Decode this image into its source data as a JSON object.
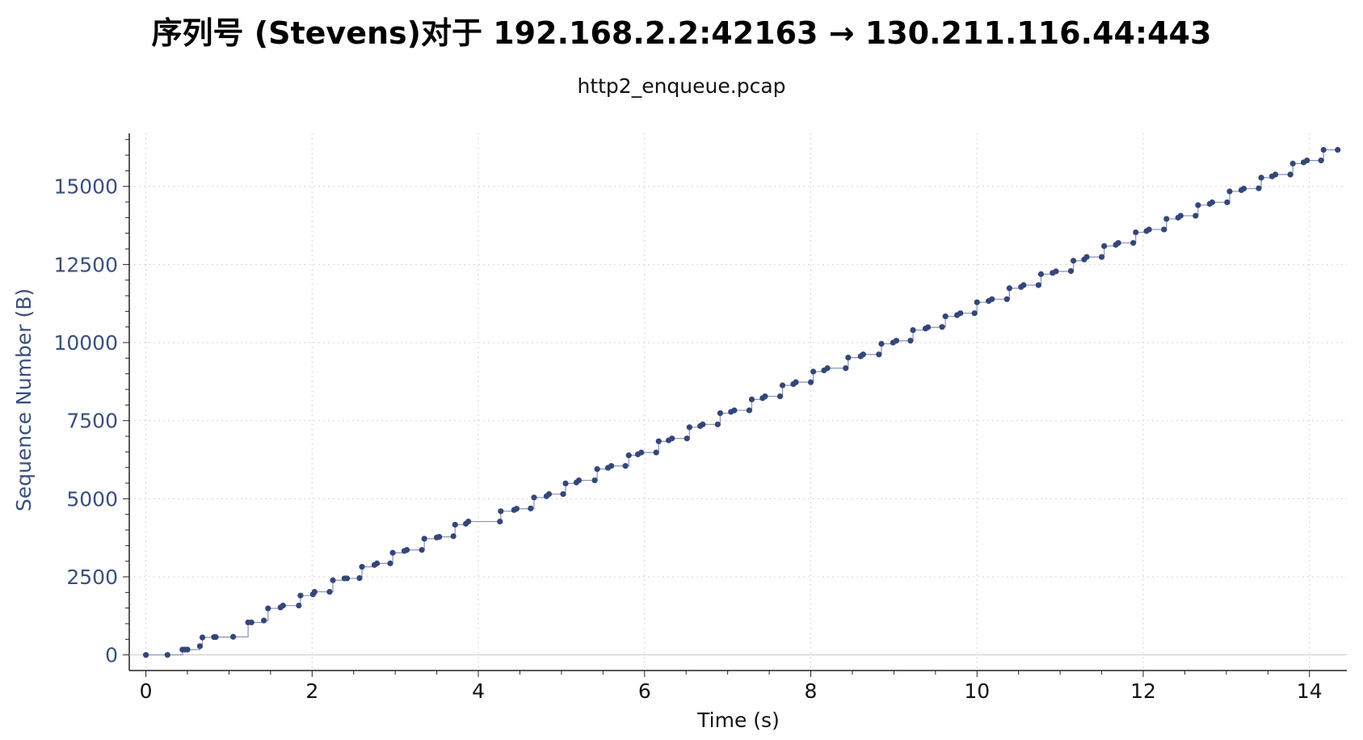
{
  "chart_data": {
    "type": "scatter",
    "title": "序列号 (Stevens)对于 192.168.2.2:42163 → 130.211.116.44:443",
    "subtitle": "http2_enqueue.pcap",
    "xlabel": "Time (s)",
    "ylabel": "Sequence Number (B)",
    "xlim": [
      -0.2,
      14.45
    ],
    "ylim": [
      -500,
      16700
    ],
    "xticks": [
      0,
      2,
      4,
      6,
      8,
      10,
      12,
      14
    ],
    "yticks": [
      0,
      2500,
      5000,
      7500,
      10000,
      12500,
      15000
    ],
    "grid": true,
    "legend": "none",
    "series": [
      {
        "color": "#34467a",
        "points": [
          [
            0.0,
            0
          ],
          [
            0.26,
            0
          ],
          [
            0.44,
            170
          ],
          [
            0.47,
            170
          ],
          [
            0.5,
            170
          ],
          [
            0.65,
            280
          ],
          [
            0.68,
            560
          ],
          [
            0.82,
            570
          ],
          [
            0.84,
            570
          ],
          [
            1.05,
            580
          ],
          [
            1.23,
            1040
          ],
          [
            1.27,
            1040
          ],
          [
            1.42,
            1100
          ],
          [
            1.47,
            1490
          ],
          [
            1.62,
            1520
          ],
          [
            1.65,
            1580
          ],
          [
            1.84,
            1580
          ],
          [
            1.86,
            1900
          ],
          [
            2.01,
            1940
          ],
          [
            2.03,
            2020
          ],
          [
            2.21,
            2020
          ],
          [
            2.25,
            2390
          ],
          [
            2.39,
            2450
          ],
          [
            2.42,
            2450
          ],
          [
            2.57,
            2460
          ],
          [
            2.6,
            2820
          ],
          [
            2.75,
            2880
          ],
          [
            2.78,
            2930
          ],
          [
            2.94,
            2930
          ],
          [
            2.97,
            3270
          ],
          [
            3.11,
            3330
          ],
          [
            3.14,
            3360
          ],
          [
            3.32,
            3360
          ],
          [
            3.35,
            3720
          ],
          [
            3.5,
            3760
          ],
          [
            3.53,
            3780
          ],
          [
            3.7,
            3800
          ],
          [
            3.72,
            4170
          ],
          [
            3.85,
            4200
          ],
          [
            3.88,
            4270
          ],
          [
            4.26,
            4270
          ],
          [
            4.27,
            4600
          ],
          [
            4.43,
            4640
          ],
          [
            4.46,
            4680
          ],
          [
            4.63,
            4690
          ],
          [
            4.67,
            5040
          ],
          [
            4.82,
            5080
          ],
          [
            4.85,
            5150
          ],
          [
            5.02,
            5150
          ],
          [
            5.05,
            5490
          ],
          [
            5.18,
            5520
          ],
          [
            5.21,
            5590
          ],
          [
            5.4,
            5590
          ],
          [
            5.43,
            5950
          ],
          [
            5.56,
            5990
          ],
          [
            5.6,
            6050
          ],
          [
            5.77,
            6050
          ],
          [
            5.81,
            6390
          ],
          [
            5.92,
            6420
          ],
          [
            5.96,
            6480
          ],
          [
            6.14,
            6480
          ],
          [
            6.17,
            6840
          ],
          [
            6.29,
            6870
          ],
          [
            6.33,
            6930
          ],
          [
            6.51,
            6930
          ],
          [
            6.54,
            7290
          ],
          [
            6.67,
            7330
          ],
          [
            6.7,
            7380
          ],
          [
            6.88,
            7380
          ],
          [
            6.91,
            7740
          ],
          [
            7.04,
            7780
          ],
          [
            7.08,
            7830
          ],
          [
            7.26,
            7830
          ],
          [
            7.29,
            8180
          ],
          [
            7.42,
            8220
          ],
          [
            7.45,
            8280
          ],
          [
            7.63,
            8280
          ],
          [
            7.66,
            8630
          ],
          [
            7.79,
            8670
          ],
          [
            7.82,
            8730
          ],
          [
            8.0,
            8730
          ],
          [
            8.03,
            9070
          ],
          [
            8.16,
            9110
          ],
          [
            8.2,
            9180
          ],
          [
            8.42,
            9180
          ],
          [
            8.45,
            9520
          ],
          [
            8.6,
            9560
          ],
          [
            8.63,
            9620
          ],
          [
            8.82,
            9620
          ],
          [
            8.85,
            9960
          ],
          [
            8.99,
            10000
          ],
          [
            9.03,
            10060
          ],
          [
            9.2,
            10060
          ],
          [
            9.23,
            10400
          ],
          [
            9.38,
            10450
          ],
          [
            9.41,
            10490
          ],
          [
            9.58,
            10500
          ],
          [
            9.62,
            10840
          ],
          [
            9.76,
            10880
          ],
          [
            9.8,
            10940
          ],
          [
            9.97,
            10940
          ],
          [
            10.0,
            11290
          ],
          [
            10.14,
            11330
          ],
          [
            10.18,
            11390
          ],
          [
            10.36,
            11390
          ],
          [
            10.39,
            11740
          ],
          [
            10.53,
            11780
          ],
          [
            10.56,
            11840
          ],
          [
            10.74,
            11840
          ],
          [
            10.77,
            12190
          ],
          [
            10.91,
            12230
          ],
          [
            10.95,
            12280
          ],
          [
            11.13,
            12290
          ],
          [
            11.16,
            12620
          ],
          [
            11.29,
            12660
          ],
          [
            11.32,
            12740
          ],
          [
            11.5,
            12740
          ],
          [
            11.53,
            13090
          ],
          [
            11.67,
            13130
          ],
          [
            11.7,
            13190
          ],
          [
            11.88,
            13190
          ],
          [
            11.91,
            13530
          ],
          [
            12.04,
            13570
          ],
          [
            12.07,
            13620
          ],
          [
            12.25,
            13620
          ],
          [
            12.28,
            13960
          ],
          [
            12.42,
            14000
          ],
          [
            12.45,
            14060
          ],
          [
            12.63,
            14060
          ],
          [
            12.66,
            14400
          ],
          [
            12.8,
            14440
          ],
          [
            12.83,
            14490
          ],
          [
            13.01,
            14490
          ],
          [
            13.04,
            14840
          ],
          [
            13.18,
            14880
          ],
          [
            13.21,
            14930
          ],
          [
            13.39,
            14940
          ],
          [
            13.42,
            15280
          ],
          [
            13.55,
            15320
          ],
          [
            13.59,
            15380
          ],
          [
            13.77,
            15380
          ],
          [
            13.8,
            15730
          ],
          [
            13.93,
            15770
          ],
          [
            13.97,
            15830
          ],
          [
            14.14,
            15830
          ],
          [
            14.17,
            16170
          ],
          [
            14.34,
            16170
          ]
        ]
      }
    ]
  }
}
